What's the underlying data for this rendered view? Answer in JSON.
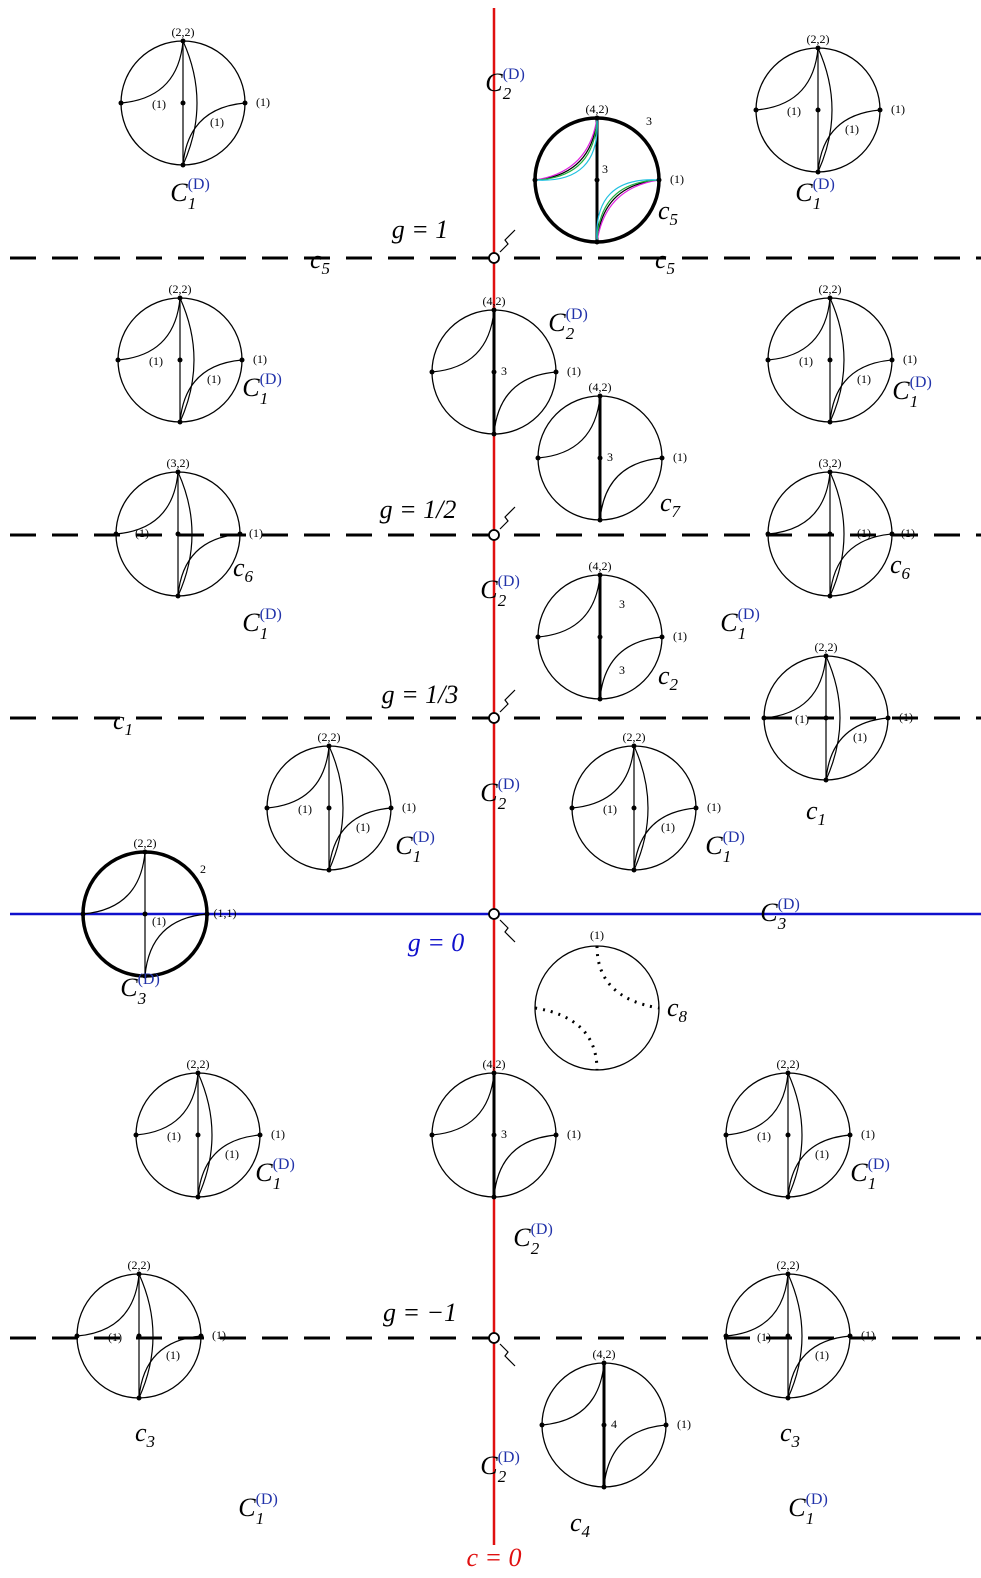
{
  "disks": [
    {
      "labels": [
        "(2,2)",
        "(1)",
        "(1)",
        "(1)"
      ]
    },
    {
      "labels": [
        "(4,2)",
        "3",
        "3",
        "(1)"
      ]
    },
    {
      "labels": [
        "(2,2)",
        "(1)",
        "(1)",
        "(1)"
      ]
    },
    {
      "labels": [
        "(2,2)",
        "(1)",
        "(1)",
        "(1)"
      ]
    },
    {
      "labels": [
        "(4,2)",
        "3",
        "(1)"
      ]
    },
    {
      "labels": [
        "(2,2)",
        "(1)",
        "(1)",
        "(1)"
      ]
    },
    {
      "labels": [
        "(4,2)",
        "3",
        "(1)"
      ]
    },
    {
      "labels": [
        "(3,2)",
        "(1)",
        "(1)"
      ]
    },
    {
      "labels": [
        "(3,2)",
        "(1)",
        "(1)"
      ]
    },
    {
      "labels": [
        "(4,2)",
        "3",
        "3",
        "(1)"
      ]
    },
    {
      "labels": [
        "(2,2)",
        "(1)",
        "(1)",
        "(1)"
      ]
    },
    {
      "labels": [
        "(2,2)",
        "(1)",
        "(1)",
        "(1)"
      ]
    },
    {
      "labels": [
        "(2,2)",
        "(1)",
        "(1)",
        "(1)"
      ]
    },
    {
      "labels": [
        "(2,2)",
        "2",
        "(1)",
        "(1,1)"
      ]
    },
    {
      "labels": [
        "(1)"
      ]
    },
    {
      "labels": [
        "(2,2)",
        "(1)",
        "(1)",
        "(1)"
      ]
    },
    {
      "labels": [
        "(4,2)",
        "3",
        "(1)"
      ]
    },
    {
      "labels": [
        "(2,2)",
        "(1)",
        "(1)",
        "(1)"
      ]
    },
    {
      "labels": [
        "(2,2)",
        "(1)",
        "(1)",
        "(1)"
      ]
    },
    {
      "labels": [
        "(2,2)",
        "(1)",
        "(1)",
        "(1)"
      ]
    },
    {
      "labels": [
        "(4,2)",
        "4",
        "(1)"
      ]
    }
  ],
  "symbols": [
    {
      "base": "C",
      "sub": "2",
      "sup": "(D)"
    },
    {
      "base": "C",
      "sub": "1",
      "sup": "(D)"
    },
    {
      "base": "C",
      "sub": "1",
      "sup": "(D)"
    },
    {
      "base": "c",
      "sub": "5"
    },
    {
      "base": "c",
      "sub": "5"
    },
    {
      "base": "c",
      "sub": "5"
    },
    {
      "base": "C",
      "sub": "2",
      "sup": "(D)"
    },
    {
      "base": "C",
      "sub": "1",
      "sup": "(D)"
    },
    {
      "base": "C",
      "sub": "1",
      "sup": "(D)"
    },
    {
      "base": "c",
      "sub": "7"
    },
    {
      "base": "c",
      "sub": "6"
    },
    {
      "base": "c",
      "sub": "6"
    },
    {
      "base": "C",
      "sub": "2",
      "sup": "(D)"
    },
    {
      "base": "C",
      "sub": "1",
      "sup": "(D)"
    },
    {
      "base": "C",
      "sub": "1",
      "sup": "(D)"
    },
    {
      "base": "c",
      "sub": "2"
    },
    {
      "base": "c",
      "sub": "1"
    },
    {
      "base": "c",
      "sub": "1"
    },
    {
      "base": "C",
      "sub": "2",
      "sup": "(D)"
    },
    {
      "base": "C",
      "sub": "1",
      "sup": "(D)"
    },
    {
      "base": "C",
      "sub": "1",
      "sup": "(D)"
    },
    {
      "base": "C",
      "sub": "3",
      "sup": "(D)"
    },
    {
      "base": "C",
      "sub": "3",
      "sup": "(D)"
    },
    {
      "base": "c",
      "sub": "8"
    },
    {
      "base": "C",
      "sub": "1",
      "sup": "(D)"
    },
    {
      "base": "C",
      "sub": "1",
      "sup": "(D)"
    },
    {
      "base": "C",
      "sub": "2",
      "sup": "(D)"
    },
    {
      "base": "c",
      "sub": "3"
    },
    {
      "base": "c",
      "sub": "3"
    },
    {
      "base": "C",
      "sub": "2",
      "sup": "(D)"
    },
    {
      "base": "C",
      "sub": "1",
      "sup": "(D)"
    },
    {
      "base": "C",
      "sub": "1",
      "sup": "(D)"
    },
    {
      "base": "c",
      "sub": "4"
    }
  ],
  "line_labels": [
    "g = 1",
    "g = 1/2",
    "g = 1/3",
    "g = 0",
    "g = −1",
    "c = 0"
  ]
}
